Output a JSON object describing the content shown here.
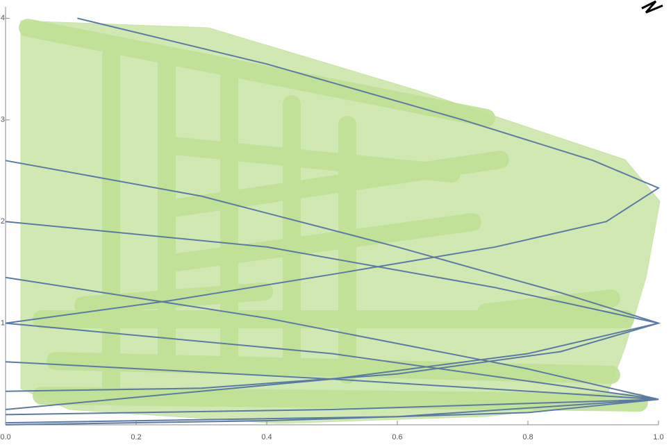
{
  "chart_data": {
    "type": "line",
    "xlim": [
      0,
      1
    ],
    "ylim": [
      0,
      4.05
    ],
    "xticks": [
      {
        "value": 0,
        "label": "0.0"
      },
      0.2,
      0.4,
      0.6,
      0.8,
      {
        "value": 1,
        "label": "1.0"
      }
    ],
    "yticks": [
      1,
      2,
      3,
      4
    ],
    "series": [
      {
        "color": "#5b7aa6",
        "x": [
          0.11,
          0.4,
          0.7,
          0.9,
          1.0,
          0.92,
          0.75,
          0.5,
          0.25,
          0
        ],
        "values": [
          4.0,
          3.55,
          3.0,
          2.6,
          2.33,
          2.0,
          1.75,
          1.48,
          1.22,
          1.0
        ]
      },
      {
        "color": "#5b7aa6",
        "x": [
          0,
          0.3,
          0.6,
          0.85,
          1.0,
          0.85,
          0.6,
          0.3,
          0
        ],
        "values": [
          2.6,
          2.25,
          1.75,
          1.3,
          1.0,
          0.72,
          0.5,
          0.36,
          0.33
        ]
      },
      {
        "color": "#5b7aa6",
        "x": [
          0,
          0.4,
          0.75,
          1.0,
          0.8,
          0.5,
          0
        ],
        "values": [
          2.0,
          1.75,
          1.35,
          1.0,
          0.7,
          0.45,
          0.15
        ]
      },
      {
        "color": "#5b7aa6",
        "x": [
          0,
          0.4,
          0.8,
          1.0,
          0.8,
          0.4,
          0
        ],
        "values": [
          1.45,
          1.05,
          0.55,
          0.25,
          0.12,
          0.04,
          0.0
        ]
      },
      {
        "color": "#5b7aa6",
        "x": [
          0,
          0.5,
          1.0,
          0.6,
          0
        ],
        "values": [
          1.0,
          0.7,
          0.25,
          0.08,
          0.02
        ]
      },
      {
        "color": "#5b7aa6",
        "x": [
          0,
          0.5,
          1.0,
          0.5,
          0
        ],
        "values": [
          0.62,
          0.45,
          0.25,
          0.15,
          0.1
        ]
      }
    ]
  }
}
